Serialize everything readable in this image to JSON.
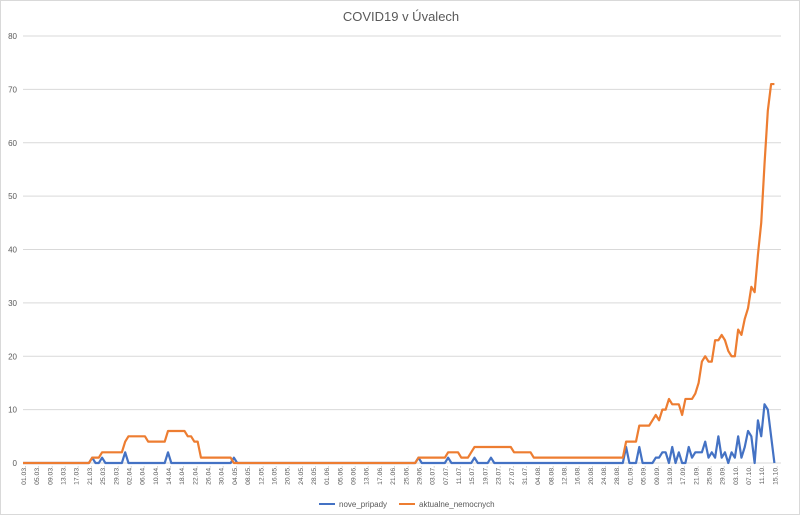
{
  "chart_data": {
    "type": "line",
    "title": "COVID19 v Úvalech",
    "xlabel": "",
    "ylabel": "",
    "ylim": [
      0,
      80
    ],
    "yticks": [
      0,
      10,
      20,
      30,
      40,
      50,
      60,
      70,
      80
    ],
    "grid": "horizontal",
    "legend_position": "bottom",
    "x_tick_labels": [
      "01.03.",
      "05.03.",
      "09.03.",
      "13.03.",
      "17.03.",
      "21.03.",
      "25.03.",
      "29.03.",
      "02.04.",
      "06.04.",
      "10.04.",
      "14.04.",
      "18.04.",
      "22.04.",
      "26.04.",
      "30.04.",
      "04.05.",
      "08.05.",
      "12.05.",
      "16.05.",
      "20.05.",
      "24.05.",
      "28.05.",
      "01.06.",
      "05.06.",
      "09.06.",
      "13.06.",
      "17.06.",
      "21.06.",
      "25.06.",
      "29.06.",
      "03.07.",
      "07.07.",
      "11.07.",
      "15.07.",
      "19.07.",
      "23.07.",
      "27.07.",
      "31.07.",
      "04.08.",
      "08.08.",
      "12.08.",
      "16.08.",
      "20.08.",
      "24.08.",
      "28.08.",
      "01.09.",
      "05.09.",
      "09.09.",
      "13.09.",
      "17.09.",
      "21.09.",
      "25.09.",
      "29.09.",
      "03.10.",
      "07.10.",
      "11.10.",
      "15.10."
    ],
    "series": [
      {
        "name": "nove_pripady",
        "color": "#4472c4",
        "points": [
          [
            "01.03.",
            0
          ],
          [
            "21.03.",
            0
          ],
          [
            "22.03.",
            1
          ],
          [
            "23.03.",
            0
          ],
          [
            "24.03.",
            0
          ],
          [
            "25.03.",
            1
          ],
          [
            "26.03.",
            0
          ],
          [
            "31.03.",
            0
          ],
          [
            "01.04.",
            2
          ],
          [
            "02.04.",
            0
          ],
          [
            "13.04.",
            0
          ],
          [
            "14.04.",
            2
          ],
          [
            "15.04.",
            0
          ],
          [
            "03.05.",
            0
          ],
          [
            "04.05.",
            1
          ],
          [
            "05.05.",
            0
          ],
          [
            "28.06.",
            0
          ],
          [
            "29.06.",
            1
          ],
          [
            "30.06.",
            0
          ],
          [
            "07.07.",
            0
          ],
          [
            "08.07.",
            1
          ],
          [
            "09.07.",
            0
          ],
          [
            "15.07.",
            0
          ],
          [
            "16.07.",
            1
          ],
          [
            "17.07.",
            0
          ],
          [
            "20.07.",
            0
          ],
          [
            "21.07.",
            1
          ],
          [
            "22.07.",
            0
          ],
          [
            "30.08.",
            0
          ],
          [
            "31.08.",
            3
          ],
          [
            "01.09.",
            0
          ],
          [
            "03.09.",
            0
          ],
          [
            "04.09.",
            3
          ],
          [
            "05.09.",
            0
          ],
          [
            "08.09.",
            0
          ],
          [
            "09.09.",
            1
          ],
          [
            "10.09.",
            1
          ],
          [
            "11.09.",
            2
          ],
          [
            "12.09.",
            2
          ],
          [
            "13.09.",
            0
          ],
          [
            "14.09.",
            3
          ],
          [
            "15.09.",
            0
          ],
          [
            "16.09.",
            2
          ],
          [
            "17.09.",
            0
          ],
          [
            "18.09.",
            0
          ],
          [
            "19.09.",
            3
          ],
          [
            "20.09.",
            1
          ],
          [
            "21.09.",
            2
          ],
          [
            "22.09.",
            2
          ],
          [
            "23.09.",
            2
          ],
          [
            "24.09.",
            4
          ],
          [
            "25.09.",
            1
          ],
          [
            "26.09.",
            2
          ],
          [
            "27.09.",
            1
          ],
          [
            "28.09.",
            5
          ],
          [
            "29.09.",
            1
          ],
          [
            "30.09.",
            2
          ],
          [
            "01.10.",
            0
          ],
          [
            "02.10.",
            2
          ],
          [
            "03.10.",
            1
          ],
          [
            "04.10.",
            5
          ],
          [
            "05.10.",
            1
          ],
          [
            "06.10.",
            3
          ],
          [
            "07.10.",
            6
          ],
          [
            "08.10.",
            5
          ],
          [
            "09.10.",
            0
          ],
          [
            "10.10.",
            8
          ],
          [
            "11.10.",
            5
          ],
          [
            "12.10.",
            11
          ],
          [
            "13.10.",
            10
          ],
          [
            "14.10.",
            5
          ],
          [
            "15.10.",
            0
          ]
        ]
      },
      {
        "name": "aktualne_nemocnych",
        "color": "#ed7d31",
        "points": [
          [
            "01.03.",
            0
          ],
          [
            "21.03.",
            0
          ],
          [
            "22.03.",
            1
          ],
          [
            "23.03.",
            1
          ],
          [
            "24.03.",
            1
          ],
          [
            "25.03.",
            2
          ],
          [
            "31.03.",
            2
          ],
          [
            "01.04.",
            4
          ],
          [
            "02.04.",
            5
          ],
          [
            "07.04.",
            5
          ],
          [
            "08.04.",
            4
          ],
          [
            "13.04.",
            4
          ],
          [
            "14.04.",
            6
          ],
          [
            "19.04.",
            6
          ],
          [
            "20.04.",
            5
          ],
          [
            "21.04.",
            5
          ],
          [
            "22.04.",
            4
          ],
          [
            "23.04.",
            4
          ],
          [
            "24.04.",
            1
          ],
          [
            "03.05.",
            1
          ],
          [
            "04.05.",
            0
          ],
          [
            "28.06.",
            0
          ],
          [
            "29.06.",
            1
          ],
          [
            "07.07.",
            1
          ],
          [
            "08.07.",
            2
          ],
          [
            "11.07.",
            2
          ],
          [
            "12.07.",
            1
          ],
          [
            "14.07.",
            1
          ],
          [
            "15.07.",
            2
          ],
          [
            "16.07.",
            3
          ],
          [
            "27.07.",
            3
          ],
          [
            "28.07.",
            2
          ],
          [
            "02.08.",
            2
          ],
          [
            "03.08.",
            1
          ],
          [
            "29.08.",
            1
          ],
          [
            "30.08.",
            1
          ],
          [
            "31.08.",
            4
          ],
          [
            "03.09.",
            4
          ],
          [
            "04.09.",
            7
          ],
          [
            "07.09.",
            7
          ],
          [
            "08.09.",
            8
          ],
          [
            "09.09.",
            9
          ],
          [
            "10.09.",
            8
          ],
          [
            "11.09.",
            10
          ],
          [
            "12.09.",
            10
          ],
          [
            "13.09.",
            12
          ],
          [
            "14.09.",
            11
          ],
          [
            "16.09.",
            11
          ],
          [
            "17.09.",
            9
          ],
          [
            "18.09.",
            12
          ],
          [
            "20.09.",
            12
          ],
          [
            "21.09.",
            13
          ],
          [
            "22.09.",
            15
          ],
          [
            "23.09.",
            19
          ],
          [
            "24.09.",
            20
          ],
          [
            "25.09.",
            19
          ],
          [
            "26.09.",
            19
          ],
          [
            "27.09.",
            23
          ],
          [
            "28.09.",
            23
          ],
          [
            "29.09.",
            24
          ],
          [
            "30.09.",
            23
          ],
          [
            "01.10.",
            21
          ],
          [
            "02.10.",
            20
          ],
          [
            "03.10.",
            20
          ],
          [
            "04.10.",
            25
          ],
          [
            "05.10.",
            24
          ],
          [
            "06.10.",
            27
          ],
          [
            "07.10.",
            29
          ],
          [
            "08.10.",
            33
          ],
          [
            "09.10.",
            32
          ],
          [
            "10.10.",
            39
          ],
          [
            "11.10.",
            45
          ],
          [
            "12.10.",
            56
          ],
          [
            "13.10.",
            66
          ],
          [
            "14.10.",
            71
          ],
          [
            "15.10.",
            71
          ]
        ]
      }
    ]
  }
}
